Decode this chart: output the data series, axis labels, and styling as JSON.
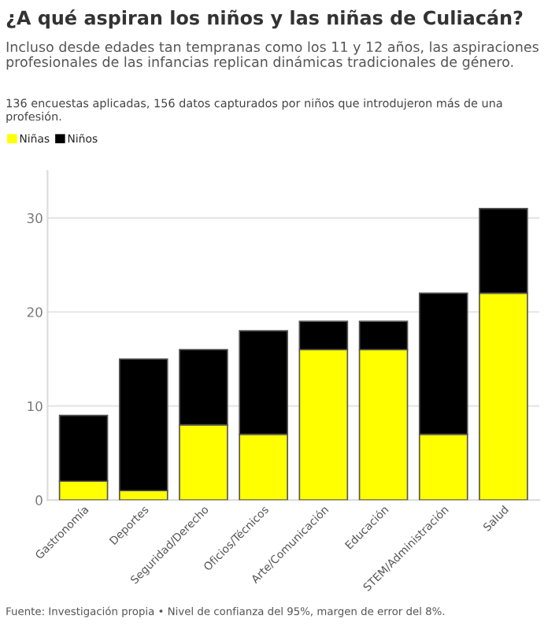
{
  "chart_data": {
    "type": "bar",
    "title": "¿A qué aspiran los niños y las niñas de Culiacán?",
    "subtitle": "Incluso desde edades tan tempranas como los 11 y 12 años, las aspiraciones profesionales de las infancias replican dinámicas tradicionales de género.",
    "annotations": [
      "136 encuestas aplicadas, 156 datos capturados por niños que introdujeron más de una profesión.",
      "Fuente: Investigación propia • Nivel de confianza del 95%, margen de error del 8%."
    ],
    "categories": [
      "Gastronomía",
      "Deportes",
      "Seguridad/Derecho",
      "Oficios/Técnicos",
      "Arte/Comunicación",
      "Educación",
      "STEM/Administración",
      "Salud"
    ],
    "series": [
      {
        "name": "Niñas",
        "color": "#ffff00",
        "values": [
          2,
          1,
          8,
          7,
          16,
          16,
          7,
          22
        ]
      },
      {
        "name": "Niños",
        "color": "#000000",
        "values": [
          7,
          14,
          8,
          11,
          3,
          3,
          15,
          9
        ]
      }
    ],
    "stacked": true,
    "ylim": [
      0,
      35
    ],
    "yticks": [
      0,
      10,
      20,
      30
    ],
    "grid": "y",
    "legend": "top left"
  }
}
